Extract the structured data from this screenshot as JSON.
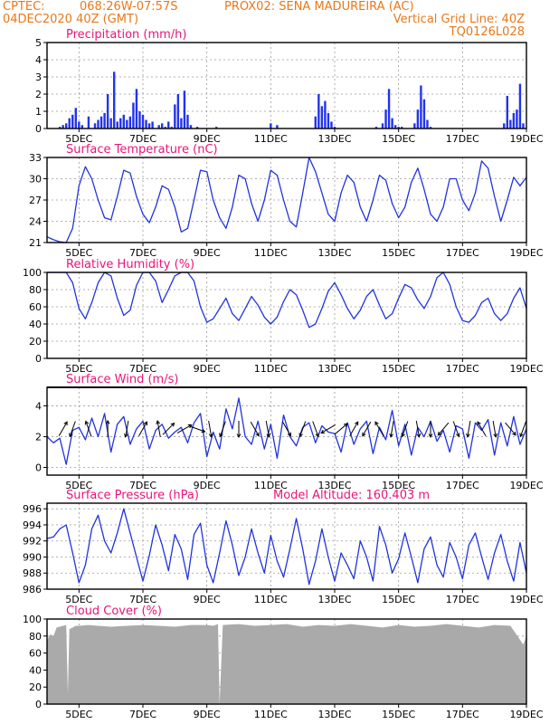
{
  "colors": {
    "header": "#e8781a",
    "panel_title": "#e8157a",
    "series": "#2233dd",
    "bars": "#2233ee",
    "cloud": "#aaaaaa",
    "grid": "#999999",
    "axis": "#000000"
  },
  "header": {
    "line1_left": "CPTEC:",
    "line1_coords": "068:26W-07:57S",
    "line1_station": "PROX02: SENA MADUREIRA (AC)",
    "line2_date": "04DEC2020 40Z (GMT)",
    "line2_grid": "Vertical Grid Line: 40Z",
    "line3_code": "TQ0126L028"
  },
  "x_axis": {
    "tick_labels": [
      "5DEC",
      "7DEC",
      "9DEC",
      "11DEC",
      "13DEC",
      "15DEC",
      "17DEC",
      "19DEC"
    ],
    "tick_days": [
      5,
      7,
      9,
      11,
      13,
      15,
      17,
      19
    ],
    "start_day": 4.0,
    "end_day": 19.0
  },
  "panels": [
    {
      "id": "precip",
      "title": "Precipitation (mm/h)",
      "extra": "",
      "type": "bar",
      "ylim": [
        0,
        5
      ],
      "yticks": [
        "0",
        "1",
        "2",
        "3",
        "4",
        "5"
      ]
    },
    {
      "id": "temp",
      "title": "Surface Temperature (nC)",
      "extra": "",
      "type": "line",
      "ylim": [
        21,
        33
      ],
      "yticks": [
        "21",
        "24",
        "27",
        "30",
        "33"
      ]
    },
    {
      "id": "rh",
      "title": "Relative Humidity (%)",
      "extra": "",
      "type": "line",
      "ylim": [
        0,
        100
      ],
      "yticks": [
        "0",
        "20",
        "40",
        "60",
        "80",
        "100"
      ]
    },
    {
      "id": "wind",
      "title": "Surface Wind (m/s)",
      "extra": "",
      "type": "line",
      "ylim": [
        -0.5,
        5.2
      ],
      "yticks": [
        "0",
        "2",
        "4"
      ]
    },
    {
      "id": "press",
      "title": "Surface Pressure (hPa)",
      "extra": "Model Altitude: 160.403 m",
      "type": "line",
      "ylim": [
        986,
        996.7
      ],
      "yticks": [
        "986",
        "988",
        "990",
        "992",
        "994",
        "996"
      ]
    },
    {
      "id": "cloud",
      "title": "Cloud Cover (%)",
      "extra": "",
      "type": "area",
      "ylim": [
        0,
        100
      ],
      "yticks": [
        "0",
        "20",
        "40",
        "60",
        "80",
        "100"
      ]
    }
  ],
  "chart_data": [
    {
      "type": "bar",
      "title": "Precipitation (mm/h)",
      "ylim": [
        0,
        5
      ],
      "x_days": [
        4.4,
        4.5,
        4.6,
        4.7,
        4.8,
        4.9,
        5.0,
        5.1,
        5.3,
        5.5,
        5.6,
        5.7,
        5.8,
        5.9,
        6.0,
        6.1,
        6.2,
        6.3,
        6.4,
        6.5,
        6.6,
        6.7,
        6.8,
        6.9,
        7.0,
        7.1,
        7.2,
        7.3,
        7.5,
        7.6,
        7.7,
        7.8,
        7.9,
        8.0,
        8.1,
        8.2,
        8.3,
        8.4,
        8.5,
        8.7,
        8.9,
        9.3,
        9.5,
        10.1,
        10.4,
        10.8,
        11.0,
        11.2,
        11.5,
        11.8,
        12.1,
        12.4,
        12.5,
        12.6,
        12.7,
        12.8,
        12.9,
        13.0,
        13.2,
        13.3,
        13.5,
        14.0,
        14.3,
        14.5,
        14.6,
        14.7,
        14.8,
        14.9,
        15.0,
        15.1,
        15.3,
        15.5,
        15.6,
        15.7,
        15.8,
        15.9,
        16.0,
        16.3,
        16.6,
        17.0,
        17.3,
        17.6,
        18.0,
        18.3,
        18.4,
        18.5,
        18.6,
        18.7,
        18.8,
        18.9,
        19.0
      ],
      "values": [
        0.1,
        0.2,
        0.3,
        0.6,
        0.8,
        1.2,
        0.4,
        0.2,
        0.7,
        0.3,
        0.5,
        0.7,
        0.9,
        2.0,
        0.6,
        3.3,
        0.4,
        0.6,
        0.8,
        0.5,
        0.7,
        1.5,
        2.3,
        1.0,
        0.8,
        0.5,
        0.3,
        0.4,
        0.2,
        0.3,
        0.1,
        0.4,
        0.1,
        1.4,
        2.0,
        0.6,
        2.2,
        0.8,
        0.2,
        0.1,
        0.0,
        0.1,
        0.0,
        0.0,
        0.0,
        0.0,
        0.3,
        0.2,
        0.0,
        0.0,
        0.0,
        0.7,
        2.0,
        1.3,
        1.6,
        0.9,
        0.4,
        0.1,
        0.0,
        0.0,
        0.0,
        0.0,
        0.1,
        0.3,
        1.1,
        2.3,
        0.6,
        0.2,
        0.1,
        0.1,
        0.0,
        0.3,
        1.1,
        2.5,
        1.7,
        0.5,
        0.1,
        0.0,
        0.0,
        0.0,
        0.0,
        0.0,
        0.0,
        0.3,
        1.9,
        0.5,
        0.9,
        1.1,
        2.6,
        0.3,
        0.0
      ]
    },
    {
      "type": "line",
      "title": "Surface Temperature (nC)",
      "ylim": [
        21,
        33
      ],
      "x_days": [
        4.0,
        4.2,
        4.4,
        4.6,
        4.8,
        5.0,
        5.2,
        5.4,
        5.6,
        5.8,
        6.0,
        6.2,
        6.4,
        6.6,
        6.8,
        7.0,
        7.2,
        7.4,
        7.6,
        7.8,
        8.0,
        8.2,
        8.4,
        8.6,
        8.8,
        9.0,
        9.2,
        9.4,
        9.6,
        9.8,
        10.0,
        10.2,
        10.4,
        10.6,
        10.8,
        11.0,
        11.2,
        11.4,
        11.6,
        11.8,
        12.0,
        12.2,
        12.4,
        12.6,
        12.8,
        13.0,
        13.2,
        13.4,
        13.6,
        13.8,
        14.0,
        14.2,
        14.4,
        14.6,
        14.8,
        15.0,
        15.2,
        15.4,
        15.6,
        15.8,
        16.0,
        16.2,
        16.4,
        16.6,
        16.8,
        17.0,
        17.2,
        17.4,
        17.6,
        17.8,
        18.0,
        18.2,
        18.4,
        18.6,
        18.8,
        19.0
      ],
      "values": [
        21.8,
        21.4,
        21.1,
        21.0,
        23.0,
        29.0,
        31.7,
        30.0,
        27.0,
        24.5,
        24.2,
        27.5,
        31.2,
        30.8,
        27.5,
        25.0,
        23.8,
        26.0,
        29.0,
        28.5,
        26.0,
        22.5,
        23.0,
        27.0,
        31.2,
        31.0,
        27.0,
        24.5,
        23.0,
        26.0,
        30.5,
        30.0,
        26.5,
        24.0,
        27.0,
        31.2,
        30.5,
        27.0,
        24.0,
        23.2,
        28.0,
        33.0,
        31.0,
        28.0,
        25.0,
        24.0,
        28.0,
        30.5,
        29.5,
        26.0,
        24.0,
        27.0,
        30.5,
        29.8,
        26.5,
        24.5,
        26.0,
        29.5,
        31.5,
        28.5,
        25.0,
        24.0,
        26.0,
        30.0,
        30.0,
        27.0,
        25.5,
        28.0,
        32.5,
        31.5,
        27.5,
        24.0,
        27.0,
        30.2,
        29.0,
        30.2
      ]
    },
    {
      "type": "line",
      "title": "Relative Humidity (%)",
      "ylim": [
        0,
        100
      ],
      "x_days": [
        4.0,
        4.2,
        4.4,
        4.6,
        4.8,
        5.0,
        5.2,
        5.4,
        5.6,
        5.8,
        6.0,
        6.2,
        6.4,
        6.6,
        6.8,
        7.0,
        7.2,
        7.4,
        7.6,
        7.8,
        8.0,
        8.2,
        8.4,
        8.6,
        8.8,
        9.0,
        9.2,
        9.4,
        9.6,
        9.8,
        10.0,
        10.2,
        10.4,
        10.6,
        10.8,
        11.0,
        11.2,
        11.4,
        11.6,
        11.8,
        12.0,
        12.2,
        12.4,
        12.6,
        12.8,
        13.0,
        13.2,
        13.4,
        13.6,
        13.8,
        14.0,
        14.2,
        14.4,
        14.6,
        14.8,
        15.0,
        15.2,
        15.4,
        15.6,
        15.8,
        16.0,
        16.2,
        16.4,
        16.6,
        16.8,
        17.0,
        17.2,
        17.4,
        17.6,
        17.8,
        18.0,
        18.2,
        18.4,
        18.6,
        18.8,
        19.0
      ],
      "values": [
        100,
        100,
        100,
        100,
        88,
        58,
        46,
        65,
        88,
        100,
        96,
        70,
        50,
        56,
        85,
        100,
        100,
        90,
        65,
        80,
        96,
        100,
        100,
        90,
        60,
        42,
        46,
        58,
        70,
        52,
        44,
        58,
        72,
        62,
        48,
        40,
        48,
        66,
        80,
        74,
        56,
        36,
        40,
        58,
        78,
        88,
        74,
        58,
        46,
        56,
        72,
        80,
        62,
        46,
        52,
        70,
        86,
        82,
        68,
        58,
        72,
        94,
        100,
        86,
        60,
        44,
        42,
        50,
        65,
        70,
        52,
        44,
        52,
        70,
        82,
        58
      ]
    },
    {
      "type": "line",
      "title": "Surface Wind (m/s)",
      "ylim": [
        -0.5,
        5.2
      ],
      "x_days": [
        4.0,
        4.2,
        4.4,
        4.6,
        4.8,
        5.0,
        5.2,
        5.4,
        5.6,
        5.8,
        6.0,
        6.2,
        6.4,
        6.6,
        6.8,
        7.0,
        7.2,
        7.4,
        7.6,
        7.8,
        8.0,
        8.2,
        8.4,
        8.6,
        8.8,
        9.0,
        9.2,
        9.4,
        9.6,
        9.8,
        10.0,
        10.2,
        10.4,
        10.6,
        10.8,
        11.0,
        11.2,
        11.4,
        11.6,
        11.8,
        12.0,
        12.2,
        12.4,
        12.6,
        12.8,
        13.0,
        13.2,
        13.4,
        13.6,
        13.8,
        14.0,
        14.2,
        14.4,
        14.6,
        14.8,
        15.0,
        15.2,
        15.4,
        15.6,
        15.8,
        16.0,
        16.2,
        16.4,
        16.6,
        16.8,
        17.0,
        17.2,
        17.4,
        17.6,
        17.8,
        18.0,
        18.2,
        18.4,
        18.6,
        18.8,
        19.0
      ],
      "values": [
        2.0,
        1.6,
        1.9,
        0.2,
        2.4,
        2.6,
        1.8,
        3.2,
        2.0,
        3.5,
        1.0,
        2.8,
        3.3,
        1.5,
        2.5,
        3.0,
        1.2,
        2.4,
        2.8,
        1.9,
        2.3,
        2.6,
        1.6,
        2.9,
        3.5,
        0.7,
        2.3,
        1.2,
        3.8,
        2.5,
        4.5,
        2.0,
        1.5,
        3.0,
        1.2,
        2.8,
        0.6,
        3.4,
        2.0,
        1.4,
        2.6,
        2.9,
        1.6,
        2.7,
        2.3,
        2.2,
        1.0,
        2.9,
        1.5,
        2.5,
        3.0,
        0.9,
        2.6,
        1.8,
        3.7,
        1.4,
        2.8,
        0.8,
        2.6,
        2.0,
        3.0,
        1.7,
        2.4,
        1.0,
        2.7,
        2.5,
        0.6,
        2.9,
        2.4,
        3.1,
        0.8,
        2.9,
        1.4,
        3.3,
        1.5,
        2.5
      ],
      "arrows": {
        "x_days": [
          4.5,
          4.8,
          5.3,
          5.9,
          6.5,
          7.0,
          7.5,
          7.8,
          8.3,
          8.7,
          9.1,
          9.5,
          10.0,
          10.5,
          10.9,
          11.5,
          12.0,
          12.4,
          12.8,
          13.2,
          13.6,
          14.0,
          14.4,
          14.8,
          15.2,
          15.6,
          16.0,
          16.4,
          16.8,
          17.2,
          17.6,
          18.0,
          18.5,
          18.9
        ],
        "bearing_deg": [
          30,
          200,
          340,
          0,
          190,
          30,
          350,
          45,
          60,
          110,
          170,
          200,
          180,
          150,
          170,
          150,
          200,
          160,
          240,
          50,
          30,
          210,
          330,
          190,
          200,
          170,
          180,
          220,
          160,
          190,
          330,
          170,
          140,
          200
        ]
      }
    },
    {
      "type": "line",
      "title": "Surface Pressure (hPa)",
      "ylim": [
        986,
        996.7
      ],
      "x_days": [
        4.0,
        4.2,
        4.4,
        4.6,
        4.8,
        5.0,
        5.2,
        5.4,
        5.6,
        5.8,
        6.0,
        6.2,
        6.4,
        6.6,
        6.8,
        7.0,
        7.2,
        7.4,
        7.6,
        7.8,
        8.0,
        8.2,
        8.4,
        8.6,
        8.8,
        9.0,
        9.2,
        9.4,
        9.6,
        9.8,
        10.0,
        10.2,
        10.4,
        10.6,
        10.8,
        11.0,
        11.2,
        11.4,
        11.6,
        11.8,
        12.0,
        12.2,
        12.4,
        12.6,
        12.8,
        13.0,
        13.2,
        13.4,
        13.6,
        13.8,
        14.0,
        14.2,
        14.4,
        14.6,
        14.8,
        15.0,
        15.2,
        15.4,
        15.6,
        15.8,
        16.0,
        16.2,
        16.4,
        16.6,
        16.8,
        17.0,
        17.2,
        17.4,
        17.6,
        17.8,
        18.0,
        18.2,
        18.4,
        18.6,
        18.8,
        19.0
      ],
      "values": [
        992.3,
        992.5,
        993.5,
        994.0,
        990.5,
        986.8,
        989.0,
        993.5,
        995.2,
        992.0,
        990.5,
        993.0,
        996.0,
        993.0,
        990.0,
        987.0,
        990.2,
        994.0,
        991.5,
        988.3,
        992.8,
        991.0,
        987.2,
        992.8,
        994.2,
        989.0,
        986.8,
        990.5,
        994.5,
        991.5,
        987.7,
        990.0,
        993.5,
        990.5,
        988.0,
        992.7,
        989.5,
        987.5,
        991.0,
        994.8,
        991.0,
        986.6,
        989.5,
        993.5,
        990.0,
        987.0,
        990.5,
        989.0,
        987.3,
        992.0,
        990.0,
        987.0,
        993.8,
        991.5,
        988.0,
        989.8,
        993.0,
        990.0,
        986.8,
        991.0,
        992.5,
        989.0,
        987.5,
        991.8,
        990.0,
        987.3,
        991.5,
        993.0,
        990.0,
        987.2,
        990.5,
        992.8,
        989.5,
        987.0,
        991.8,
        988.0
      ]
    },
    {
      "type": "area",
      "title": "Cloud Cover (%)",
      "ylim": [
        0,
        100
      ],
      "x_days": [
        4.0,
        4.1,
        4.2,
        4.3,
        4.4,
        4.5,
        4.6,
        4.65,
        4.7,
        4.8,
        4.9,
        5.0,
        5.3,
        5.6,
        6.0,
        6.5,
        7.0,
        7.5,
        8.0,
        8.5,
        9.0,
        9.2,
        9.35,
        9.4,
        9.5,
        10.0,
        10.5,
        11.0,
        11.5,
        12.0,
        12.5,
        13.0,
        13.5,
        14.0,
        14.5,
        15.0,
        15.5,
        16.0,
        16.5,
        17.0,
        17.5,
        18.0,
        18.5,
        18.9,
        19.0
      ],
      "values": [
        75,
        82,
        80,
        90,
        91,
        92,
        93,
        12,
        88,
        90,
        92,
        92,
        93,
        92,
        91,
        92,
        93,
        92,
        91,
        93,
        93,
        92,
        94,
        0,
        93,
        94,
        92,
        93,
        94,
        91,
        93,
        92,
        94,
        92,
        90,
        93,
        91,
        92,
        94,
        92,
        90,
        93,
        92,
        70,
        80
      ]
    }
  ]
}
